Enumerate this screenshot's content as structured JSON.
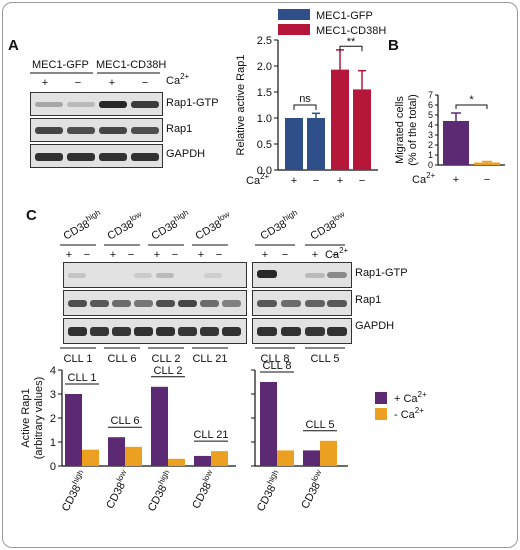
{
  "panel_labels": {
    "a": "A",
    "b": "B",
    "c": "C"
  },
  "colors": {
    "gfp": "#2f4f8a",
    "cd38h": "#b5173a",
    "violet": "#5c2a72",
    "orange": "#eba021",
    "blot_bg": "#e2e2e2",
    "band": "#1e1e1e"
  },
  "panel_a": {
    "blot": {
      "groups": [
        "MEC1-GFP",
        "MEC1-CD38H"
      ],
      "lanes": [
        "+",
        "−",
        "+",
        "−"
      ],
      "ca_label": "Ca",
      "ca_sup": "2+",
      "rows": [
        "Rap1-GTP",
        "Rap1",
        "GAPDH"
      ]
    },
    "chart_data": {
      "type": "bar",
      "categories": [
        "+",
        "−",
        "+",
        "−"
      ],
      "groups": [
        "MEC1-GFP",
        "MEC1-GFP",
        "MEC1-CD38H",
        "MEC1-CD38H"
      ],
      "values": [
        1.0,
        1.0,
        1.93,
        1.55
      ],
      "errors": [
        0,
        0.09,
        0.38,
        0.36
      ],
      "ylabel": "Relative active Rap1",
      "ylim": [
        0,
        2.5
      ],
      "yticks": [
        "0.0",
        "0.5",
        "1.0",
        "1.5",
        "2.0",
        "2.5"
      ],
      "xlabel_prefix": "Ca",
      "xlabel_sup": "2+",
      "legend": [
        "MEC1-GFP",
        "MEC1-CD38H"
      ],
      "legend_position": "top",
      "annotations": [
        "ns",
        "**"
      ]
    }
  },
  "panel_b": {
    "chart_data": {
      "type": "bar",
      "categories": [
        "+",
        "−"
      ],
      "values": [
        4.4,
        0.25
      ],
      "errors": [
        0.8,
        0.1
      ],
      "ylabel_line1": "Migrated cells",
      "ylabel_line2": "(% of the total)",
      "ylim": [
        0,
        7
      ],
      "yticks": [
        "0",
        "1",
        "2",
        "3",
        "4",
        "5",
        "6",
        "7"
      ],
      "xlabel_prefix": "Ca",
      "xlabel_sup": "2+",
      "annotations": [
        "*"
      ]
    }
  },
  "panel_c": {
    "blot": {
      "header_base": "CD38",
      "headers_left": [
        "high",
        "low",
        "high",
        "low"
      ],
      "headers_right": [
        "high",
        "low"
      ],
      "lanes": [
        "+",
        "−"
      ],
      "ca_label": "Ca",
      "ca_sup": "2+",
      "rows": [
        "Rap1-GTP",
        "Rap1",
        "GAPDH"
      ],
      "patients_left": [
        "CLL 1",
        "CLL 6",
        "CLL 2",
        "CLL 21"
      ],
      "patients_right": [
        "CLL 8",
        "CLL 5"
      ]
    },
    "chart_data": [
      {
        "type": "bar",
        "categories": [
          "CLL 1",
          "CLL 6",
          "CLL 2",
          "CLL 21"
        ],
        "tick_base": "CD38",
        "tick_sups": [
          "high",
          "low",
          "high",
          "low"
        ],
        "series": [
          {
            "name": "+ Ca2+",
            "values": [
              3.0,
              1.2,
              3.3,
              0.42
            ]
          },
          {
            "name": "- Ca2+",
            "values": [
              0.68,
              0.8,
              0.3,
              0.62
            ]
          }
        ],
        "ylabel_line1": "Active Rap1",
        "ylabel_line2": "(arbitrary values)",
        "ylim": [
          0,
          4
        ],
        "yticks": [
          "0",
          "1",
          "2",
          "3",
          "4"
        ]
      },
      {
        "type": "bar",
        "categories": [
          "CLL 8",
          "CLL 5"
        ],
        "tick_base": "CD38",
        "tick_sups": [
          "high",
          "low"
        ],
        "series": [
          {
            "name": "+ Ca2+",
            "values": [
              3.5,
              0.65
            ]
          },
          {
            "name": "- Ca2+",
            "values": [
              0.65,
              1.05
            ]
          }
        ],
        "ylim": [
          0,
          4
        ]
      }
    ],
    "legend": [
      {
        "prefix": "+ Ca",
        "sup": "2+"
      },
      {
        "prefix": "-  Ca",
        "sup": "2+"
      }
    ],
    "legend_position": "right"
  }
}
